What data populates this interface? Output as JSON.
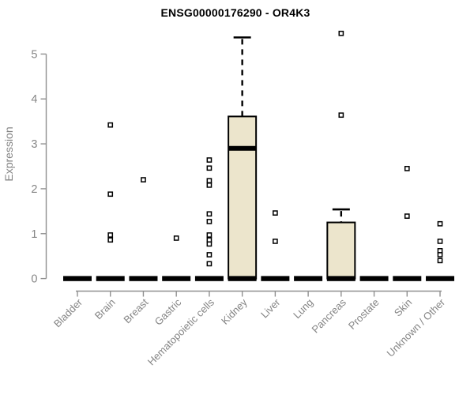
{
  "chart_data": {
    "type": "boxplot",
    "title": "ENSG00000176290 - OR4K3",
    "xlabel": "",
    "ylabel": "Expression",
    "ylim": [
      0,
      5.5
    ],
    "yticks": [
      0,
      1,
      2,
      3,
      4,
      5
    ],
    "grid": false,
    "legend": "none",
    "categories": [
      "Bladder",
      "Brain",
      "Breast",
      "Gastric",
      "Hematopoietic cells",
      "Kidney",
      "Liver",
      "Lung",
      "Pancreas",
      "Prostate",
      "Skin",
      "Unknown / Other"
    ],
    "boxes": [
      {
        "category": "Bladder",
        "q1": 0,
        "median": 0,
        "q3": 0,
        "whisker_low": 0,
        "whisker_high": 0,
        "outliers": []
      },
      {
        "category": "Brain",
        "q1": 0,
        "median": 0,
        "q3": 0,
        "whisker_low": 0,
        "whisker_high": 0,
        "outliers": [
          3.42,
          1.88,
          0.97,
          0.86
        ]
      },
      {
        "category": "Breast",
        "q1": 0,
        "median": 0,
        "q3": 0,
        "whisker_low": 0,
        "whisker_high": 0,
        "outliers": [
          2.2
        ]
      },
      {
        "category": "Gastric",
        "q1": 0,
        "median": 0,
        "q3": 0,
        "whisker_low": 0,
        "whisker_high": 0,
        "outliers": [
          0.9
        ]
      },
      {
        "category": "Hematopoietic cells",
        "q1": 0,
        "median": 0,
        "q3": 0,
        "whisker_low": 0,
        "whisker_high": 0,
        "outliers": [
          2.64,
          2.46,
          2.18,
          2.08,
          1.44,
          1.27,
          0.97,
          0.86,
          0.77,
          0.53,
          0.33
        ]
      },
      {
        "category": "Kidney",
        "q1": 0,
        "median": 2.9,
        "q3": 3.61,
        "whisker_low": 0,
        "whisker_high": 5.37,
        "outliers": []
      },
      {
        "category": "Liver",
        "q1": 0,
        "median": 0,
        "q3": 0,
        "whisker_low": 0,
        "whisker_high": 0,
        "outliers": [
          1.46,
          0.83
        ]
      },
      {
        "category": "Lung",
        "q1": 0,
        "median": 0,
        "q3": 0,
        "whisker_low": 0,
        "whisker_high": 0,
        "outliers": []
      },
      {
        "category": "Pancreas",
        "q1": 0,
        "median": 0,
        "q3": 1.25,
        "whisker_low": 0,
        "whisker_high": 1.54,
        "outliers": [
          5.46,
          3.64
        ]
      },
      {
        "category": "Prostate",
        "q1": 0,
        "median": 0,
        "q3": 0,
        "whisker_low": 0,
        "whisker_high": 0,
        "outliers": []
      },
      {
        "category": "Skin",
        "q1": 0,
        "median": 0,
        "q3": 0,
        "whisker_low": 0,
        "whisker_high": 0,
        "outliers": [
          2.45,
          1.39
        ]
      },
      {
        "category": "Unknown / Other",
        "q1": 0,
        "median": 0,
        "q3": 0,
        "whisker_low": 0,
        "whisker_high": 0,
        "outliers": [
          1.22,
          0.83,
          0.62,
          0.53,
          0.4
        ]
      }
    ],
    "colors": {
      "box_fill": "#ece5cc",
      "box_stroke": "#000000",
      "whisker": "#000000",
      "outlier_stroke": "#000000",
      "outlier_fill": "#ffffff",
      "axis_line": "#909090",
      "axis_text": "#858585",
      "title_text": "#000000",
      "background": "#ffffff"
    }
  }
}
